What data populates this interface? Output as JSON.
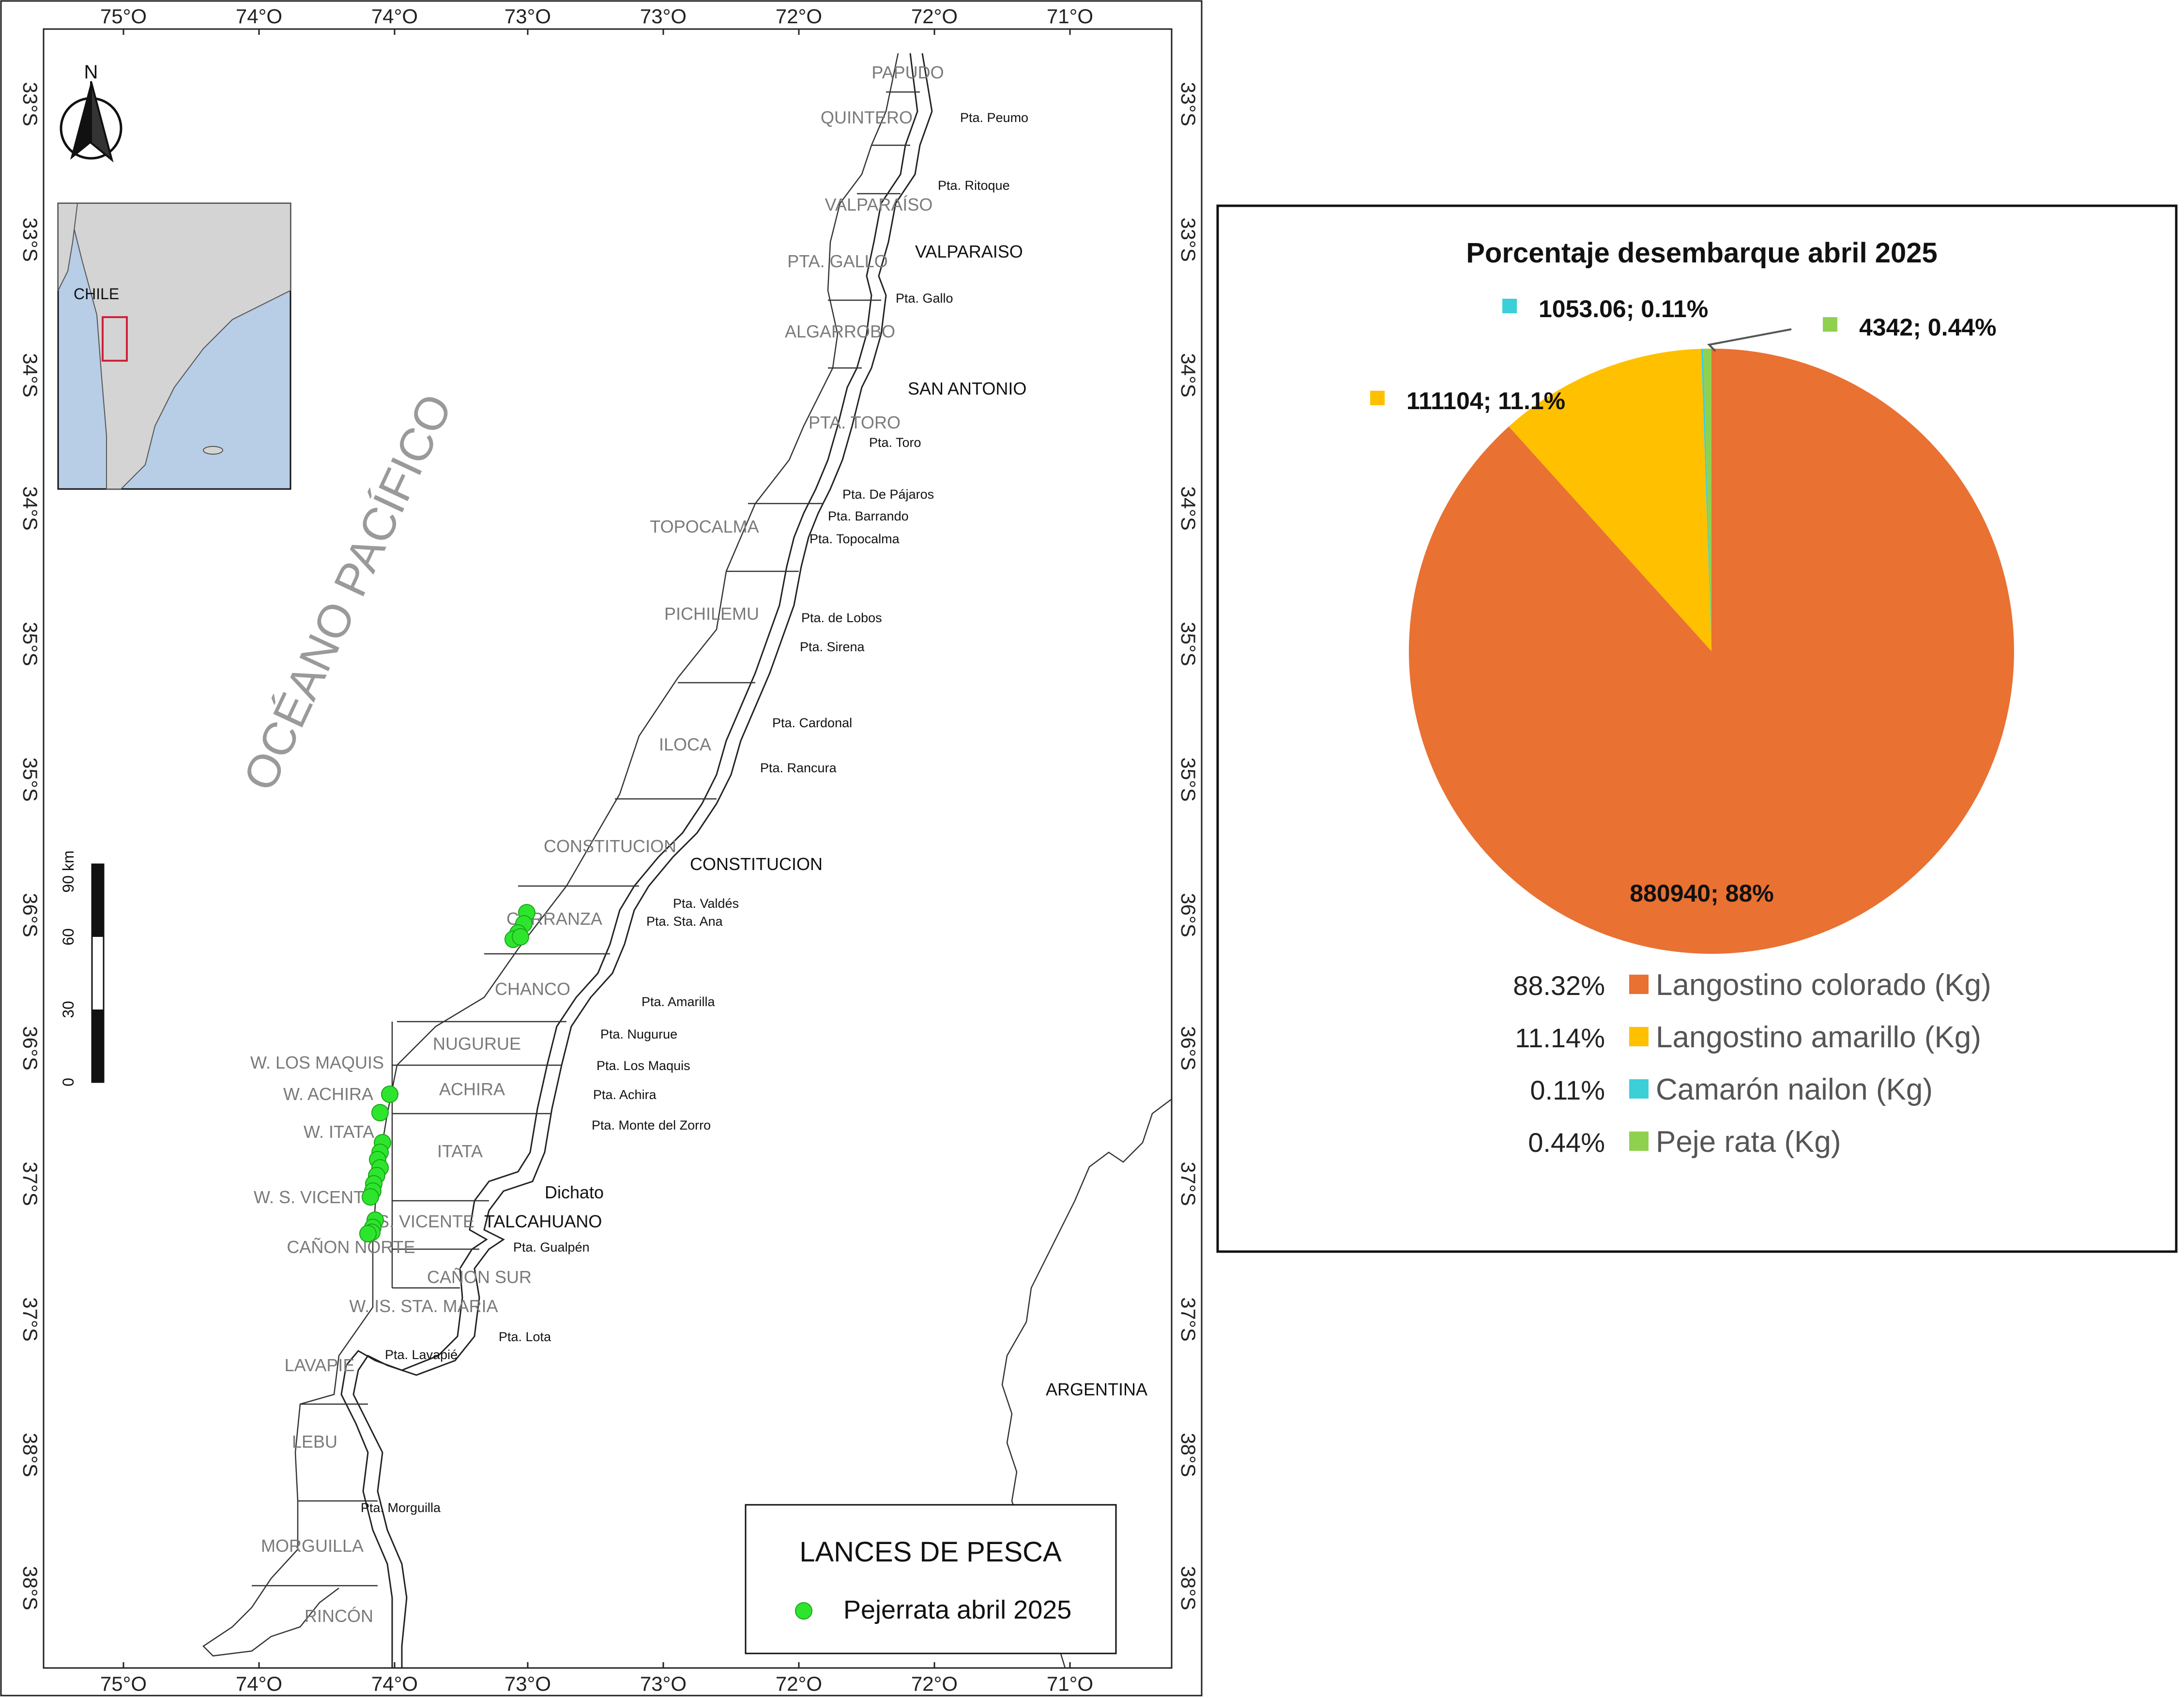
{
  "map": {
    "ocean_label": "OCÉANO PACÍFICO",
    "north_label": "N",
    "inset_label": "CHILE",
    "country_label": "ARGENTINA",
    "top_ticks": [
      "75°O",
      "74°O",
      "74°O",
      "73°O",
      "73°O",
      "72°O",
      "72°O",
      "71°O"
    ],
    "bottom_ticks": [
      "75°O",
      "74°O",
      "74°O",
      "73°O",
      "73°O",
      "72°O",
      "72°O",
      "71°O"
    ],
    "left_ticks": [
      "33°S",
      "33°S",
      "34°S",
      "34°S",
      "35°S",
      "35°S",
      "36°S",
      "36°S",
      "37°S",
      "37°S",
      "38°S",
      "38°S"
    ],
    "right_ticks": [
      "33°S",
      "33°S",
      "34°S",
      "34°S",
      "35°S",
      "35°S",
      "36°S",
      "36°S",
      "37°S",
      "37°S",
      "38°S",
      "38°S"
    ],
    "zones": [
      "PAPUDO",
      "QUINTERO",
      "VALPARAÍSO",
      "PTA. GALLO",
      "ALGARROBO",
      "PTA. TORO",
      "TOPOCALMA",
      "PICHILEMU",
      "ILOCA",
      "CONSTITUCION",
      "CARRANZA",
      "CHANCO",
      "NUGURUE",
      "W. LOS MAQUIS",
      "ACHIRA",
      "W. ACHIRA",
      "W. ITATA",
      "ITATA",
      "W. S. VICENTE",
      "S. VICENTE",
      "CAÑON NORTE",
      "CAÑON SUR",
      "W. IS. STA. MARIA",
      "LAVAPIE",
      "LEBU",
      "MORGUILLA",
      "RINCÓN"
    ],
    "points": [
      "Pta. Peumo",
      "Pta. Ritoque",
      "Pta. Gallo",
      "Pta. Toro",
      "Pta. De Pájaros",
      "Pta. Barrando",
      "Pta. Topocalma",
      "Pta. de Lobos",
      "Pta. Sirena",
      "Pta. Cardonal",
      "Pta. Rancura",
      "Pta. Valdés",
      "Pta. Sta. Ana",
      "Pta. Amarilla",
      "Pta. Nugurue",
      "Pta. Los Maquis",
      "Pta. Achira",
      "Pta. Monte del Zorro",
      "Pta. Gualpén",
      "Pta. Lota",
      "Pta. Lavapié",
      "Pta. Morguilla"
    ],
    "cities": [
      "VALPARAISO",
      "SAN ANTONIO",
      "CONSTITUCION",
      "Dichato",
      "TALCAHUANO"
    ],
    "scale_title": "90 km",
    "scale_labels": [
      "0",
      "30",
      "60"
    ],
    "legend": {
      "title": "LANCES DE PESCA",
      "item": "Pejerrata abril 2025",
      "marker_color": "#2ee52e"
    }
  },
  "chart_data": {
    "type": "pie",
    "title": "Porcentaje desembarque abril 2025",
    "categories": [
      "Langostino colorado (Kg)",
      "Langostino amarillo (Kg)",
      "Camarón nailon (Kg)",
      "Peje rata (Kg)"
    ],
    "values": [
      880940,
      111104,
      1053.06,
      4342
    ],
    "percentages": [
      "88.32%",
      "11.14%",
      "0.11%",
      "0.44%"
    ],
    "data_labels": [
      "880940; 88%",
      "111104; 11.1%",
      "1053.06; 0.11%",
      "4342; 0.44%"
    ],
    "colors": [
      "#e97132",
      "#ffc000",
      "#3bcfd8",
      "#8fd14f"
    ],
    "legend_position": "bottom"
  }
}
